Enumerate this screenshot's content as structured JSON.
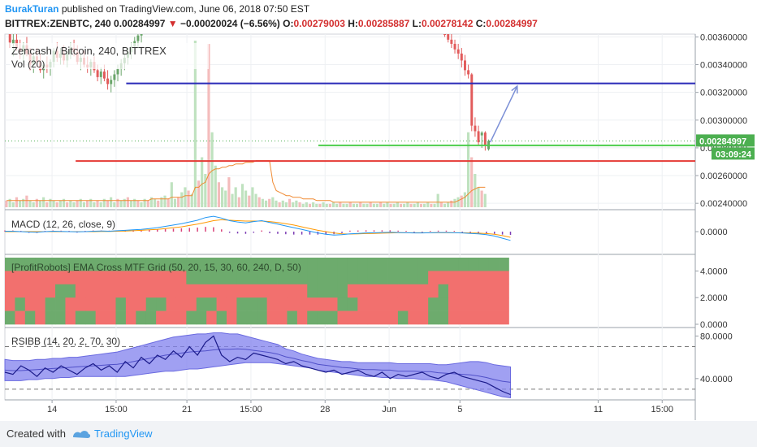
{
  "header": {
    "author": "BurakTuran",
    "published_text": "published on TradingView.com, June 06, 2018 07:50 EST",
    "symbol": "BITTREX:ZENBTC, 240",
    "last": "0.00284997",
    "arrow": "▼",
    "change": "−0.00020024 (−6.56%)",
    "open_label": "O:",
    "open": "0.00279003",
    "high_label": "H:",
    "high": "0.00285887",
    "low_label": "L:",
    "low": "0.00278142",
    "close_label": "C:",
    "close": "0.00284997"
  },
  "footer": {
    "created_with": "Created with",
    "brand": "TradingView"
  },
  "colors": {
    "up": "#6aa56a",
    "down": "#e25b5b",
    "blue_line": "#2b2bb8",
    "red_line": "#e53935",
    "green_line": "#4ccd4c",
    "price_tag": "#4caf50",
    "macd": "#2196f3",
    "signal": "#ff9800",
    "rsibb_fill": "#8080ee",
    "grid_red": "#f2706e",
    "grid_green": "#6dab6d"
  },
  "chart_data": [
    {
      "type": "candlestick",
      "title": "Zencash / Bitcoin, 240, BITTREX",
      "indicator": "Vol (20)",
      "y_ticks": [
        "0.00360000",
        "0.00340000",
        "0.00320000",
        "0.00300000",
        "0.00280000",
        "0.00260000",
        "0.00240000"
      ],
      "ylim": [
        0.00236,
        0.00362
      ],
      "price_tag": "0.00284997",
      "countdown": "03:09:24",
      "x_ticks": [
        "14",
        "15:00",
        "21",
        "15:00",
        "28",
        "Jun",
        "5",
        "11",
        "15:00"
      ],
      "x_tick_bars": [
        14,
        33,
        54,
        73,
        95,
        114,
        135,
        176,
        195
      ],
      "horizontal_lines": [
        {
          "value": 0.003265,
          "x_from_bar": 36,
          "color": "blue"
        },
        {
          "value": 0.002818,
          "x_from_bar": 93,
          "color": "green"
        },
        {
          "value": 0.002705,
          "x_from_bar": 21,
          "color": "red"
        }
      ],
      "projection_arrow": {
        "from": [
          144,
          0.00284
        ],
        "to": [
          152,
          0.003245
        ]
      },
      "candles": {
        "first_bar": 1,
        "ohlc": [
          [
            0.00368,
            0.00372,
            0.00352,
            0.00356
          ],
          [
            0.00355,
            0.00362,
            0.00346,
            0.00358
          ],
          [
            0.00358,
            0.00365,
            0.0035,
            0.00352
          ],
          [
            0.00352,
            0.00358,
            0.00344,
            0.0035
          ],
          [
            0.0035,
            0.00356,
            0.00342,
            0.00354
          ],
          [
            0.00354,
            0.0036,
            0.00346,
            0.00348
          ],
          [
            0.00348,
            0.00352,
            0.00336,
            0.0034
          ],
          [
            0.0034,
            0.00349,
            0.00334,
            0.00346
          ],
          [
            0.00346,
            0.00352,
            0.00338,
            0.00342
          ],
          [
            0.00342,
            0.00348,
            0.00334,
            0.00336
          ],
          [
            0.00336,
            0.00342,
            0.0033,
            0.0034
          ],
          [
            0.0034,
            0.00346,
            0.00334,
            0.00338
          ],
          [
            0.00338,
            0.00344,
            0.00332,
            0.00342
          ],
          [
            0.00342,
            0.00352,
            0.00338,
            0.0035
          ],
          [
            0.0035,
            0.00356,
            0.00342,
            0.00345
          ],
          [
            0.00345,
            0.00352,
            0.0034,
            0.00348
          ],
          [
            0.00348,
            0.00354,
            0.0034,
            0.00343
          ],
          [
            0.00343,
            0.0035,
            0.00338,
            0.00348
          ],
          [
            0.00348,
            0.00356,
            0.00344,
            0.00352
          ],
          [
            0.00352,
            0.00358,
            0.00346,
            0.00349
          ],
          [
            0.00349,
            0.00354,
            0.0034,
            0.00342
          ],
          [
            0.00342,
            0.00348,
            0.00336,
            0.00345
          ],
          [
            0.00345,
            0.0035,
            0.00338,
            0.0034
          ],
          [
            0.0034,
            0.00346,
            0.00334,
            0.00338
          ],
          [
            0.00338,
            0.00344,
            0.00332,
            0.00342
          ],
          [
            0.00342,
            0.00346,
            0.00334,
            0.00336
          ],
          [
            0.00336,
            0.0034,
            0.00328,
            0.00331
          ],
          [
            0.00331,
            0.00338,
            0.00326,
            0.00335
          ],
          [
            0.00335,
            0.0034,
            0.00328,
            0.0033
          ],
          [
            0.0033,
            0.00336,
            0.00322,
            0.00326
          ],
          [
            0.00326,
            0.00332,
            0.0032,
            0.00329
          ],
          [
            0.00329,
            0.00336,
            0.00324,
            0.00333
          ],
          [
            0.00333,
            0.0034,
            0.00328,
            0.00337
          ],
          [
            0.00337,
            0.00344,
            0.00332,
            0.00341
          ],
          [
            0.00341,
            0.00348,
            0.00336,
            0.00345
          ],
          [
            0.00345,
            0.00352,
            0.0034,
            0.00349
          ],
          [
            0.00349,
            0.00356,
            0.00344,
            0.00353
          ],
          [
            0.00353,
            0.0036,
            0.00348,
            0.00357
          ],
          [
            0.00357,
            0.00364,
            0.00352,
            0.00361
          ],
          [
            0.00361,
            0.00368,
            0.00356,
            0.00365
          ]
        ]
      },
      "candles2": {
        "first_bar": 130,
        "ohlc": [
          [
            0.00365,
            0.00368,
            0.0036,
            0.00362
          ],
          [
            0.00362,
            0.00366,
            0.00356,
            0.00358
          ],
          [
            0.00358,
            0.00362,
            0.00352,
            0.00355
          ],
          [
            0.00355,
            0.00358,
            0.00348,
            0.00351
          ],
          [
            0.00351,
            0.00355,
            0.00344,
            0.00348
          ],
          [
            0.00348,
            0.00352,
            0.00338,
            0.00343
          ],
          [
            0.00343,
            0.00347,
            0.00332,
            0.00336
          ],
          [
            0.00336,
            0.0034,
            0.0033,
            0.00333
          ],
          [
            0.00333,
            0.00334,
            0.00292,
            0.00296
          ],
          [
            0.00296,
            0.00302,
            0.00288,
            0.00292
          ],
          [
            0.00292,
            0.00296,
            0.00282,
            0.00284
          ],
          [
            0.00289,
            0.00292,
            0.0028,
            0.00291
          ],
          [
            0.00291,
            0.00292,
            0.00278,
            0.00282
          ],
          [
            0.00279,
            0.00286,
            0.00278,
            0.00285
          ]
        ]
      },
      "volume": [
        0.04,
        0.05,
        0.03,
        0.06,
        0.04,
        0.05,
        0.07,
        0.04,
        0.03,
        0.05,
        0.04,
        0.06,
        0.03,
        0.05,
        0.04,
        0.03,
        0.04,
        0.05,
        0.03,
        0.04,
        0.03,
        0.04,
        0.05,
        0.03,
        0.04,
        0.05,
        0.03,
        0.04,
        0.03,
        0.05,
        0.04,
        0.06,
        0.03,
        0.05,
        0.04,
        0.05,
        0.06,
        0.04,
        0.05,
        0.04,
        0.03,
        0.05,
        0.04,
        0.06,
        0.05,
        0.04,
        0.06,
        0.07,
        0.05,
        0.15,
        0.05,
        0.06,
        0.09,
        0.12,
        0.1,
        0.08,
        1.0,
        0.16,
        0.3,
        0.2,
        0.98,
        0.45,
        0.25,
        0.15,
        0.12,
        0.1,
        0.18,
        0.08,
        0.12,
        0.06,
        0.14,
        0.1,
        0.07,
        0.12,
        0.08,
        0.06,
        0.05,
        0.04,
        0.05,
        0.06,
        0.04,
        0.03,
        0.04,
        0.03,
        0.05,
        0.03,
        0.04,
        0.03,
        0.02,
        0.03,
        0.02,
        0.03,
        0.02,
        0.02,
        0.03,
        0.02,
        0.02,
        0.03,
        0.02,
        0.03,
        0.02,
        0.02,
        0.03,
        0.02,
        0.02,
        0.03,
        0.02,
        0.02,
        0.03,
        0.02,
        0.02,
        0.03,
        0.02,
        0.03,
        0.02,
        0.02,
        0.03,
        0.02,
        0.02,
        0.03,
        0.02,
        0.02,
        0.03,
        0.02,
        0.02,
        0.03,
        0.02,
        0.02,
        0.08,
        0.03,
        0.02,
        0.03,
        0.04,
        0.05,
        0.06,
        0.07,
        0.09,
        0.45,
        0.3,
        0.2,
        0.12,
        0.1,
        0.08
      ],
      "volume_ma": [
        0.04,
        0.04,
        0.04,
        0.04,
        0.04,
        0.04,
        0.04,
        0.04,
        0.04,
        0.04,
        0.04,
        0.04,
        0.04,
        0.04,
        0.04,
        0.04,
        0.04,
        0.04,
        0.04,
        0.04,
        0.04,
        0.04,
        0.04,
        0.04,
        0.04,
        0.04,
        0.04,
        0.04,
        0.04,
        0.04,
        0.04,
        0.04,
        0.04,
        0.04,
        0.04,
        0.04,
        0.04,
        0.04,
        0.04,
        0.04,
        0.04,
        0.04,
        0.04,
        0.05,
        0.05,
        0.05,
        0.05,
        0.05,
        0.05,
        0.06,
        0.06,
        0.06,
        0.06,
        0.07,
        0.07,
        0.07,
        0.12,
        0.12,
        0.14,
        0.15,
        0.2,
        0.22,
        0.23,
        0.23,
        0.24,
        0.24,
        0.25,
        0.25,
        0.26,
        0.26,
        0.26,
        0.27,
        0.27,
        0.27,
        0.28,
        0.28,
        0.28,
        0.28,
        0.28,
        0.15,
        0.1,
        0.09,
        0.08,
        0.07,
        0.07,
        0.06,
        0.06,
        0.06,
        0.05,
        0.05,
        0.05,
        0.05,
        0.04,
        0.04,
        0.04,
        0.04,
        0.04,
        0.03,
        0.03,
        0.03,
        0.03,
        0.03,
        0.03,
        0.03,
        0.03,
        0.03,
        0.03,
        0.03,
        0.03,
        0.03,
        0.03,
        0.03,
        0.03,
        0.03,
        0.03,
        0.03,
        0.03,
        0.03,
        0.03,
        0.03,
        0.03,
        0.03,
        0.03,
        0.03,
        0.03,
        0.03,
        0.03,
        0.03,
        0.03,
        0.03,
        0.03,
        0.03,
        0.03,
        0.03,
        0.04,
        0.05,
        0.06,
        0.08,
        0.1,
        0.11,
        0.12,
        0.12,
        0.12
      ]
    },
    {
      "type": "line",
      "title": "MACD (12, 26, close, 9)",
      "y_ticks": [
        "0.0000"
      ],
      "ylim": [
        -1.0,
        1.0
      ],
      "series": [
        {
          "role": "macd",
          "values": [
            0.02,
            0.02,
            0.0,
            -0.02,
            -0.03,
            0.0,
            0.02,
            0.01,
            0.0,
            -0.01,
            0.0,
            0.02,
            0.03,
            0.02,
            0.04,
            0.06,
            0.08,
            0.1,
            0.14,
            0.18,
            0.24,
            0.3,
            0.36,
            0.44,
            0.52,
            0.64,
            0.7,
            0.62,
            0.5,
            0.44,
            0.4,
            0.46,
            0.5,
            0.42,
            0.34,
            0.26,
            0.18,
            0.1,
            0.02,
            -0.06,
            -0.12,
            -0.16,
            -0.14,
            -0.1,
            -0.08,
            -0.06,
            -0.05,
            -0.04,
            -0.03,
            -0.04,
            -0.05,
            -0.06,
            -0.06,
            -0.05,
            -0.04,
            -0.04,
            -0.05,
            -0.06,
            -0.08,
            -0.1,
            -0.14,
            -0.2,
            -0.3,
            -0.4
          ]
        },
        {
          "role": "signal",
          "values": [
            0.0,
            0.0,
            0.0,
            0.0,
            0.0,
            0.0,
            0.0,
            0.0,
            0.0,
            0.0,
            0.0,
            0.0,
            0.01,
            0.01,
            0.02,
            0.03,
            0.04,
            0.06,
            0.08,
            0.1,
            0.14,
            0.18,
            0.22,
            0.28,
            0.34,
            0.42,
            0.5,
            0.54,
            0.52,
            0.5,
            0.48,
            0.48,
            0.48,
            0.46,
            0.42,
            0.36,
            0.3,
            0.22,
            0.14,
            0.06,
            0.0,
            -0.06,
            -0.1,
            -0.11,
            -0.1,
            -0.09,
            -0.08,
            -0.07,
            -0.06,
            -0.05,
            -0.05,
            -0.05,
            -0.05,
            -0.05,
            -0.05,
            -0.05,
            -0.05,
            -0.05,
            -0.06,
            -0.07,
            -0.09,
            -0.12,
            -0.18,
            -0.26
          ]
        }
      ]
    },
    {
      "type": "heatmap",
      "title": "[ProfitRobots] EMA Cross MTF Grid (50, 20, 15, 30, 60, 240, D, 50)",
      "y_ticks": [
        "4.0000",
        "2.0000",
        "0.0000"
      ],
      "ylim": [
        0,
        5
      ],
      "rows": 5,
      "cols": 50,
      "grid": [
        "GGGGGGGGGGGGGGGGGGGGGGGGGGGGGGGGGGGGGGGGGGGGGGGGGG",
        "RRRRRRRRRRRRRRRRRRGGGGGGGGGGGGGGGGGGGGGGGGRRRRRRRR",
        "RRRRRGGRRRRRRRRRRRRRRRRRRRRRRRGGGGRRRRRRRRRGRRRRRR",
        "RGRRGGRRRRRGRRGGRRRGGRRGGGRRRRRRRGGRRRRRRRGGRRRRRR",
        "GRGRGGRGGRRGRGGRRRGGRGRGGGRRGRGGGRRRRRRGRRGGRRRRRR"
      ]
    },
    {
      "type": "area",
      "title": "RSIBB (14, 20, 2, 70, 30)",
      "y_ticks": [
        "80.0000",
        "40.0000"
      ],
      "ylim": [
        20,
        88
      ],
      "reference_lines": [
        70,
        30
      ],
      "series": [
        {
          "role": "rsi",
          "values": [
            46,
            44,
            52,
            48,
            42,
            50,
            46,
            52,
            48,
            44,
            50,
            54,
            48,
            52,
            46,
            56,
            50,
            60,
            54,
            62,
            58,
            66,
            60,
            70,
            62,
            74,
            80,
            62,
            56,
            60,
            58,
            64,
            62,
            60,
            58,
            54,
            56,
            52,
            50,
            48,
            46,
            48,
            44,
            46,
            48,
            44,
            42,
            46,
            40,
            44,
            42,
            44,
            46,
            42,
            40,
            44,
            46,
            42,
            40,
            38,
            36,
            32,
            28,
            25
          ]
        },
        {
          "role": "upper_band",
          "values": [
            58,
            57,
            57,
            57,
            58,
            58,
            59,
            59,
            60,
            60,
            61,
            62,
            63,
            64,
            65,
            67,
            69,
            71,
            73,
            75,
            77,
            79,
            80,
            81,
            82,
            82,
            83,
            83,
            82,
            82,
            80,
            78,
            76,
            74,
            72,
            68,
            66,
            63,
            61,
            59,
            58,
            57,
            56,
            56,
            55,
            55,
            55,
            55,
            55,
            54,
            54,
            54,
            54,
            54,
            53,
            53,
            54,
            55,
            56,
            56,
            55,
            53,
            52,
            51
          ]
        },
        {
          "role": "lower_band",
          "values": [
            38,
            38,
            38,
            39,
            39,
            40,
            40,
            41,
            41,
            42,
            42,
            42,
            42,
            42,
            42,
            42,
            43,
            44,
            45,
            46,
            47,
            47,
            48,
            49,
            49,
            50,
            51,
            52,
            53,
            54,
            55,
            55,
            55,
            55,
            54,
            53,
            52,
            51,
            50,
            48,
            47,
            46,
            45,
            44,
            43,
            42,
            42,
            41,
            41,
            40,
            40,
            40,
            39,
            39,
            38,
            37,
            35,
            33,
            31,
            29,
            27,
            25,
            23,
            22
          ]
        }
      ]
    }
  ]
}
